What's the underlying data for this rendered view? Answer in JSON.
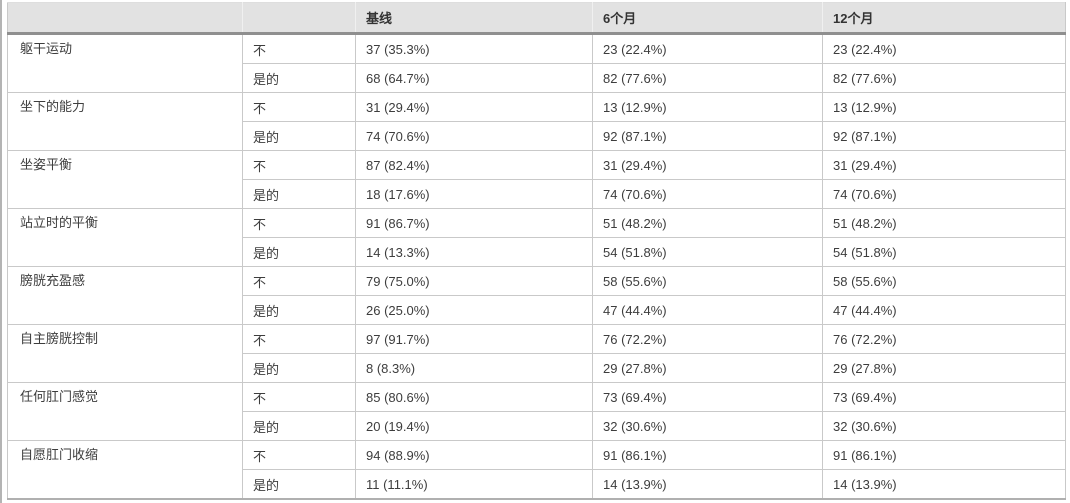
{
  "table": {
    "headers": [
      "",
      "",
      "基线",
      "6个月",
      "12个月"
    ],
    "groups": [
      {
        "label": "躯干运动",
        "rows": [
          {
            "answer": "不",
            "baseline": "37 (35.3%)",
            "m6": "23 (22.4%)",
            "m12": "23 (22.4%)"
          },
          {
            "answer": "是的",
            "baseline": "68 (64.7%)",
            "m6": "82 (77.6%)",
            "m12": "82 (77.6%)"
          }
        ]
      },
      {
        "label": "坐下的能力",
        "rows": [
          {
            "answer": "不",
            "baseline": "31 (29.4%)",
            "m6": "13 (12.9%)",
            "m12": "13 (12.9%)"
          },
          {
            "answer": "是的",
            "baseline": "74 (70.6%)",
            "m6": "92 (87.1%)",
            "m12": "92 (87.1%)"
          }
        ]
      },
      {
        "label": "坐姿平衡",
        "rows": [
          {
            "answer": "不",
            "baseline": "87 (82.4%)",
            "m6": "31 (29.4%)",
            "m12": "31 (29.4%)"
          },
          {
            "answer": "是的",
            "baseline": "18 (17.6%)",
            "m6": "74 (70.6%)",
            "m12": "74 (70.6%)"
          }
        ]
      },
      {
        "label": "站立时的平衡",
        "rows": [
          {
            "answer": "不",
            "baseline": "91 (86.7%)",
            "m6": "51 (48.2%)",
            "m12": "51 (48.2%)"
          },
          {
            "answer": "是的",
            "baseline": "14 (13.3%)",
            "m6": "54 (51.8%)",
            "m12": "54 (51.8%)"
          }
        ]
      },
      {
        "label": "膀胱充盈感",
        "rows": [
          {
            "answer": "不",
            "baseline": "79 (75.0%)",
            "m6": "58 (55.6%)",
            "m12": "58 (55.6%)"
          },
          {
            "answer": "是的",
            "baseline": "26 (25.0%)",
            "m6": "47 (44.4%)",
            "m12": "47 (44.4%)"
          }
        ]
      },
      {
        "label": "自主膀胱控制",
        "rows": [
          {
            "answer": "不",
            "baseline": "97 (91.7%)",
            "m6": "76 (72.2%)",
            "m12": "76 (72.2%)"
          },
          {
            "answer": "是的",
            "baseline": "8 (8.3%)",
            "m6": "29 (27.8%)",
            "m12": "29 (27.8%)"
          }
        ]
      },
      {
        "label": "任何肛门感觉",
        "rows": [
          {
            "answer": "不",
            "baseline": "85 (80.6%)",
            "m6": "73 (69.4%)",
            "m12": "73 (69.4%)"
          },
          {
            "answer": "是的",
            "baseline": "20 (19.4%)",
            "m6": "32 (30.6%)",
            "m12": "32 (30.6%)"
          }
        ]
      },
      {
        "label": "自愿肛门收缩",
        "rows": [
          {
            "answer": "不",
            "baseline": "94 (88.9%)",
            "m6": "91 (86.1%)",
            "m12": "91 (86.1%)"
          },
          {
            "answer": "是的",
            "baseline": "11 (11.1%)",
            "m6": "14 (13.9%)",
            "m12": "14 (13.9%)"
          }
        ]
      }
    ]
  },
  "colors": {
    "header_bg": "#e2e2e2",
    "header_rule": "#8f8f8f",
    "grid_line": "#c9c9c9",
    "text": "#3d3d3d"
  }
}
